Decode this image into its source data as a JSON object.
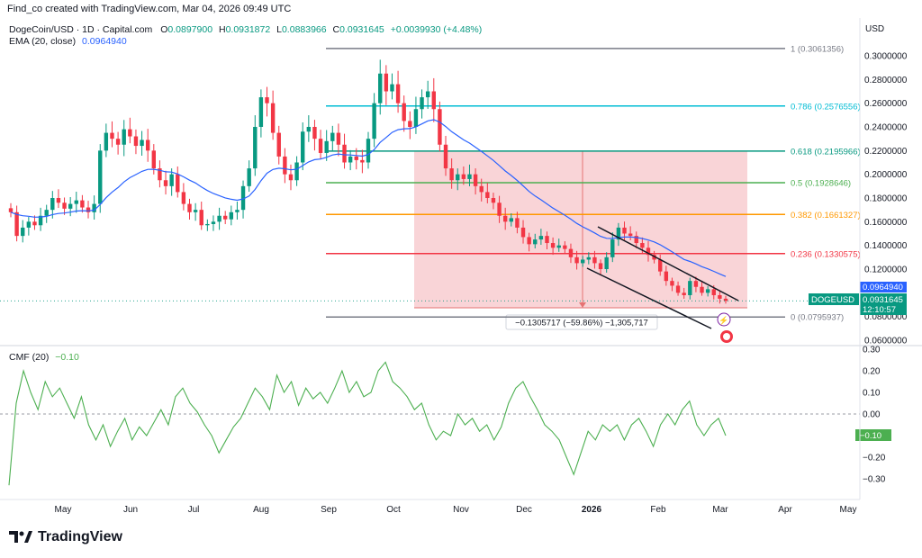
{
  "header": {
    "text": "Find_co created with TradingView.com, Mar 04, 2026 09:49 UTC"
  },
  "legend": {
    "symbol": "DogeCoin/USD · 1D · Capital.com",
    "o_label": "O",
    "o_value": "0.0897900",
    "h_label": "H",
    "h_value": "0.0931872",
    "l_label": "L",
    "l_value": "0.0883966",
    "c_label": "C",
    "c_value": "0.0931645",
    "change": "+0.0039930 (+4.48%)",
    "ema_label": "EMA (20, close)",
    "ema_value": "0.0964940"
  },
  "cmf_legend": {
    "label": "CMF (20)",
    "value": "−0.10"
  },
  "currency": "USD",
  "brand": "TradingView",
  "colors": {
    "up": "#089981",
    "down": "#f23645",
    "ema": "#2962ff",
    "cmf": "#4caf50",
    "fib_1": "#787b86",
    "fib_786": "#00bcd4",
    "fib_618": "#089981",
    "fib_5": "#4caf50",
    "fib_382": "#ff9800",
    "fib_236": "#f23645",
    "fib_0": "#787b86",
    "measure_fill": "#f7c5c9",
    "measure_line": "#e57373"
  },
  "chart_data": [
    {
      "type": "candlestick",
      "title": "DogeCoin/USD · 1D · Capital.com",
      "x_labels": [
        "May",
        "Jun",
        "Jul",
        "Aug",
        "Sep",
        "Oct",
        "Nov",
        "Dec",
        "2026",
        "Feb",
        "Mar",
        "Apr",
        "May"
      ],
      "y_ticks": [
        "0.3000000",
        "0.2800000",
        "0.2600000",
        "0.2400000",
        "0.2200000",
        "0.2000000",
        "0.1800000",
        "0.1600000",
        "0.1400000",
        "0.1200000",
        "0.0800000",
        "0.0600000"
      ],
      "ylim": [
        0.06,
        0.305
      ],
      "series": [
        {
          "name": "DogeCoin/USD",
          "closes": [
            0.168,
            0.148,
            0.155,
            0.16,
            0.157,
            0.165,
            0.17,
            0.18,
            0.176,
            0.171,
            0.175,
            0.178,
            0.172,
            0.168,
            0.175,
            0.22,
            0.235,
            0.23,
            0.225,
            0.238,
            0.232,
            0.224,
            0.229,
            0.22,
            0.205,
            0.195,
            0.19,
            0.2,
            0.185,
            0.175,
            0.168,
            0.17,
            0.157,
            0.158,
            0.16,
            0.165,
            0.162,
            0.168,
            0.17,
            0.19,
            0.205,
            0.24,
            0.265,
            0.26,
            0.235,
            0.215,
            0.2,
            0.195,
            0.21,
            0.236,
            0.24,
            0.23,
            0.218,
            0.228,
            0.235,
            0.225,
            0.21,
            0.215,
            0.212,
            0.21,
            0.23,
            0.26,
            0.285,
            0.27,
            0.276,
            0.26,
            0.245,
            0.24,
            0.255,
            0.265,
            0.27,
            0.255,
            0.225,
            0.205,
            0.195,
            0.2,
            0.196,
            0.2,
            0.19,
            0.185,
            0.18,
            0.176,
            0.165,
            0.16,
            0.163,
            0.155,
            0.147,
            0.141,
            0.145,
            0.148,
            0.142,
            0.138,
            0.14,
            0.137,
            0.13,
            0.125,
            0.128,
            0.13,
            0.125,
            0.12,
            0.13,
            0.145,
            0.155,
            0.15,
            0.148,
            0.142,
            0.138,
            0.132,
            0.128,
            0.118,
            0.11,
            0.106,
            0.1,
            0.098,
            0.11,
            0.105,
            0.1,
            0.103,
            0.098,
            0.095,
            0.0931645
          ],
          "ema_last": 0.096494,
          "last_close": 0.0931645
        }
      ],
      "fibonacci": [
        {
          "label": "1 (0.3061356)",
          "value": 0.3061356
        },
        {
          "label": "0.786 (0.2576556)",
          "value": 0.2576556
        },
        {
          "label": "0.618 (0.2195966)",
          "value": 0.2195966
        },
        {
          "label": "0.5 (0.1928646)",
          "value": 0.1928646
        },
        {
          "label": "0.382 (0.1661327)",
          "value": 0.1661327
        },
        {
          "label": "0.236 (0.1330575)",
          "value": 0.1330575
        },
        {
          "label": "0 (0.0795937)",
          "value": 0.0795937
        }
      ],
      "measure": {
        "from": 0.2195966,
        "to": 0.089,
        "label": "−0.1305717 (−59.86%) −1,305,717"
      },
      "price_tags": [
        {
          "label": "0.0964940"
        },
        {
          "label": "DOGEUSD"
        },
        {
          "label": "0.0931645"
        },
        {
          "label": "12:10:57"
        }
      ]
    },
    {
      "type": "line",
      "title": "CMF (20)",
      "y_ticks": [
        "0.30",
        "0.20",
        "0.10",
        "0.00",
        "−0.10",
        "−0.20",
        "−0.30"
      ],
      "ylim": [
        -0.34,
        0.3
      ],
      "series": [
        {
          "name": "CMF (20)",
          "values": [
            -0.33,
            0.05,
            0.2,
            0.1,
            0.02,
            0.15,
            0.08,
            0.12,
            0.05,
            -0.02,
            0.08,
            -0.05,
            -0.12,
            -0.05,
            -0.15,
            -0.08,
            -0.02,
            -0.12,
            -0.06,
            -0.1,
            -0.04,
            0.02,
            -0.05,
            0.08,
            0.12,
            0.05,
            0.01,
            -0.05,
            -0.1,
            -0.18,
            -0.12,
            -0.06,
            -0.02,
            0.05,
            0.12,
            0.08,
            0.02,
            0.18,
            0.1,
            0.15,
            0.04,
            0.12,
            0.07,
            0.1,
            0.05,
            0.12,
            0.2,
            0.1,
            0.15,
            0.08,
            0.1,
            0.2,
            0.24,
            0.15,
            0.12,
            0.08,
            0.02,
            0.05,
            -0.05,
            -0.12,
            -0.08,
            -0.1,
            0.0,
            -0.05,
            -0.02,
            -0.08,
            -0.05,
            -0.12,
            -0.06,
            0.05,
            0.12,
            0.15,
            0.08,
            0.02,
            -0.05,
            -0.08,
            -0.12,
            -0.2,
            -0.28,
            -0.18,
            -0.08,
            -0.12,
            -0.05,
            -0.08,
            -0.05,
            -0.12,
            -0.05,
            -0.02,
            -0.08,
            -0.15,
            -0.05,
            0.0,
            -0.05,
            0.02,
            0.06,
            -0.05,
            -0.1,
            -0.05,
            -0.02,
            -0.1
          ],
          "last": -0.1
        }
      ]
    }
  ]
}
